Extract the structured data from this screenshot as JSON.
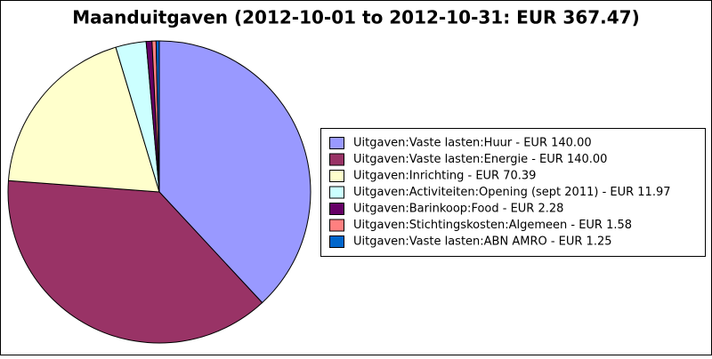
{
  "chart_data": {
    "type": "pie",
    "title": "Maanduitgaven (2012-10-01 to 2012-10-31: EUR 367.47)",
    "categories": [
      "Uitgaven:Vaste lasten:Huur - EUR 140.00",
      "Uitgaven:Vaste lasten:Energie - EUR 140.00",
      "Uitgaven:Inrichting - EUR 70.39",
      "Uitgaven:Activiteiten:Opening (sept 2011) - EUR 11.97",
      "Uitgaven:Barinkoop:Food - EUR 2.28",
      "Uitgaven:Stichtingskosten:Algemeen - EUR 1.58",
      "Uitgaven:Vaste lasten:ABN AMRO - EUR 1.25"
    ],
    "values": [
      140.0,
      140.0,
      70.39,
      11.97,
      2.28,
      1.58,
      1.25
    ],
    "colors": [
      "#9999ff",
      "#993366",
      "#ffffcc",
      "#ccffff",
      "#660066",
      "#ff8080",
      "#0066cc"
    ],
    "legend": "right"
  }
}
